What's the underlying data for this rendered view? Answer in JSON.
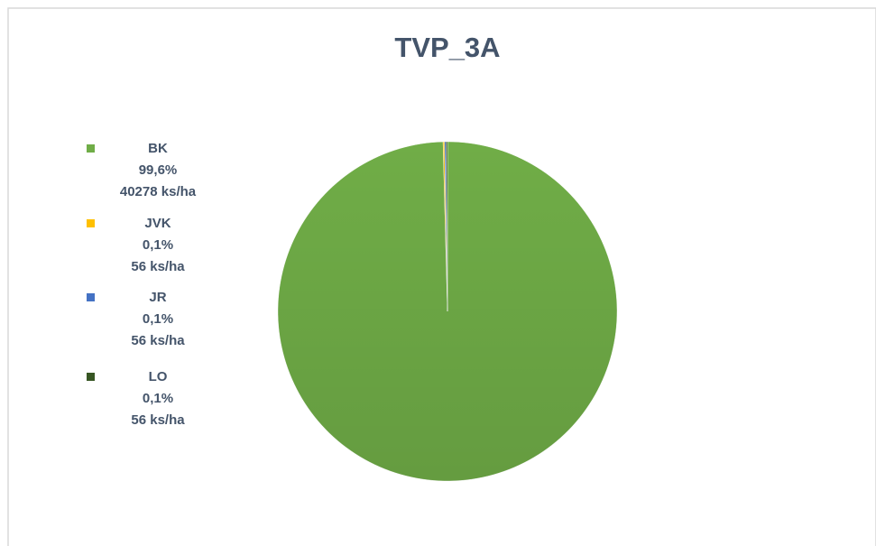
{
  "chart_data": {
    "type": "pie",
    "title": "TVP_3A",
    "categories": [
      "BK",
      "JVK",
      "JR",
      "LO"
    ],
    "values": [
      40278,
      56,
      56,
      56
    ],
    "value_labels": [
      "40278 ks/ha",
      "56 ks/ha",
      "56 ks/ha",
      "56 ks/ha"
    ],
    "percents": [
      99.6,
      0.1,
      0.1,
      0.1
    ],
    "percent_labels": [
      "99,6%",
      "0,1%",
      "0,1%",
      "0,1%"
    ],
    "colors": [
      "#70ad47",
      "#ffc000",
      "#4472c4",
      "#375623"
    ],
    "legend": "left"
  }
}
